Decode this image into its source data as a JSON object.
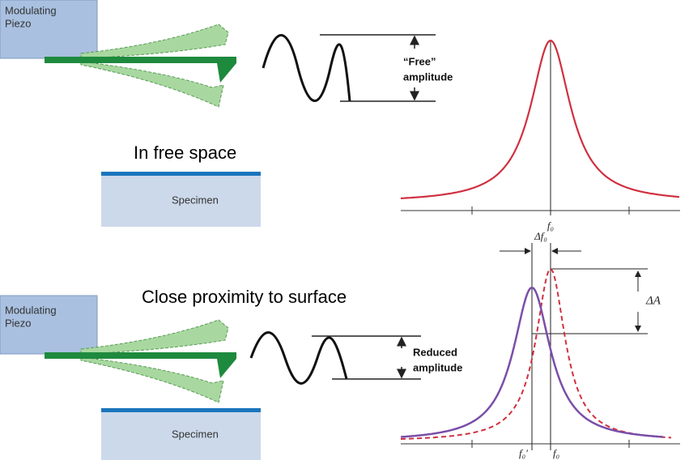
{
  "top": {
    "piezo_label": [
      "Modulating",
      "Piezo"
    ],
    "amplitude_label": [
      "“Free”",
      "amplitude"
    ],
    "caption": "In free space",
    "specimen": "Specimen",
    "freq_label": "f₀"
  },
  "bottom": {
    "piezo_label": [
      "Modulating",
      "Piezo"
    ],
    "amplitude_label": [
      "Reduced",
      "amplitude"
    ],
    "caption": "Close proximity to surface",
    "specimen": "Specimen",
    "shift_label": "Δf₀",
    "delta_a_label": "ΔA",
    "freq_labels": [
      "f₀′",
      "f₀"
    ]
  }
}
